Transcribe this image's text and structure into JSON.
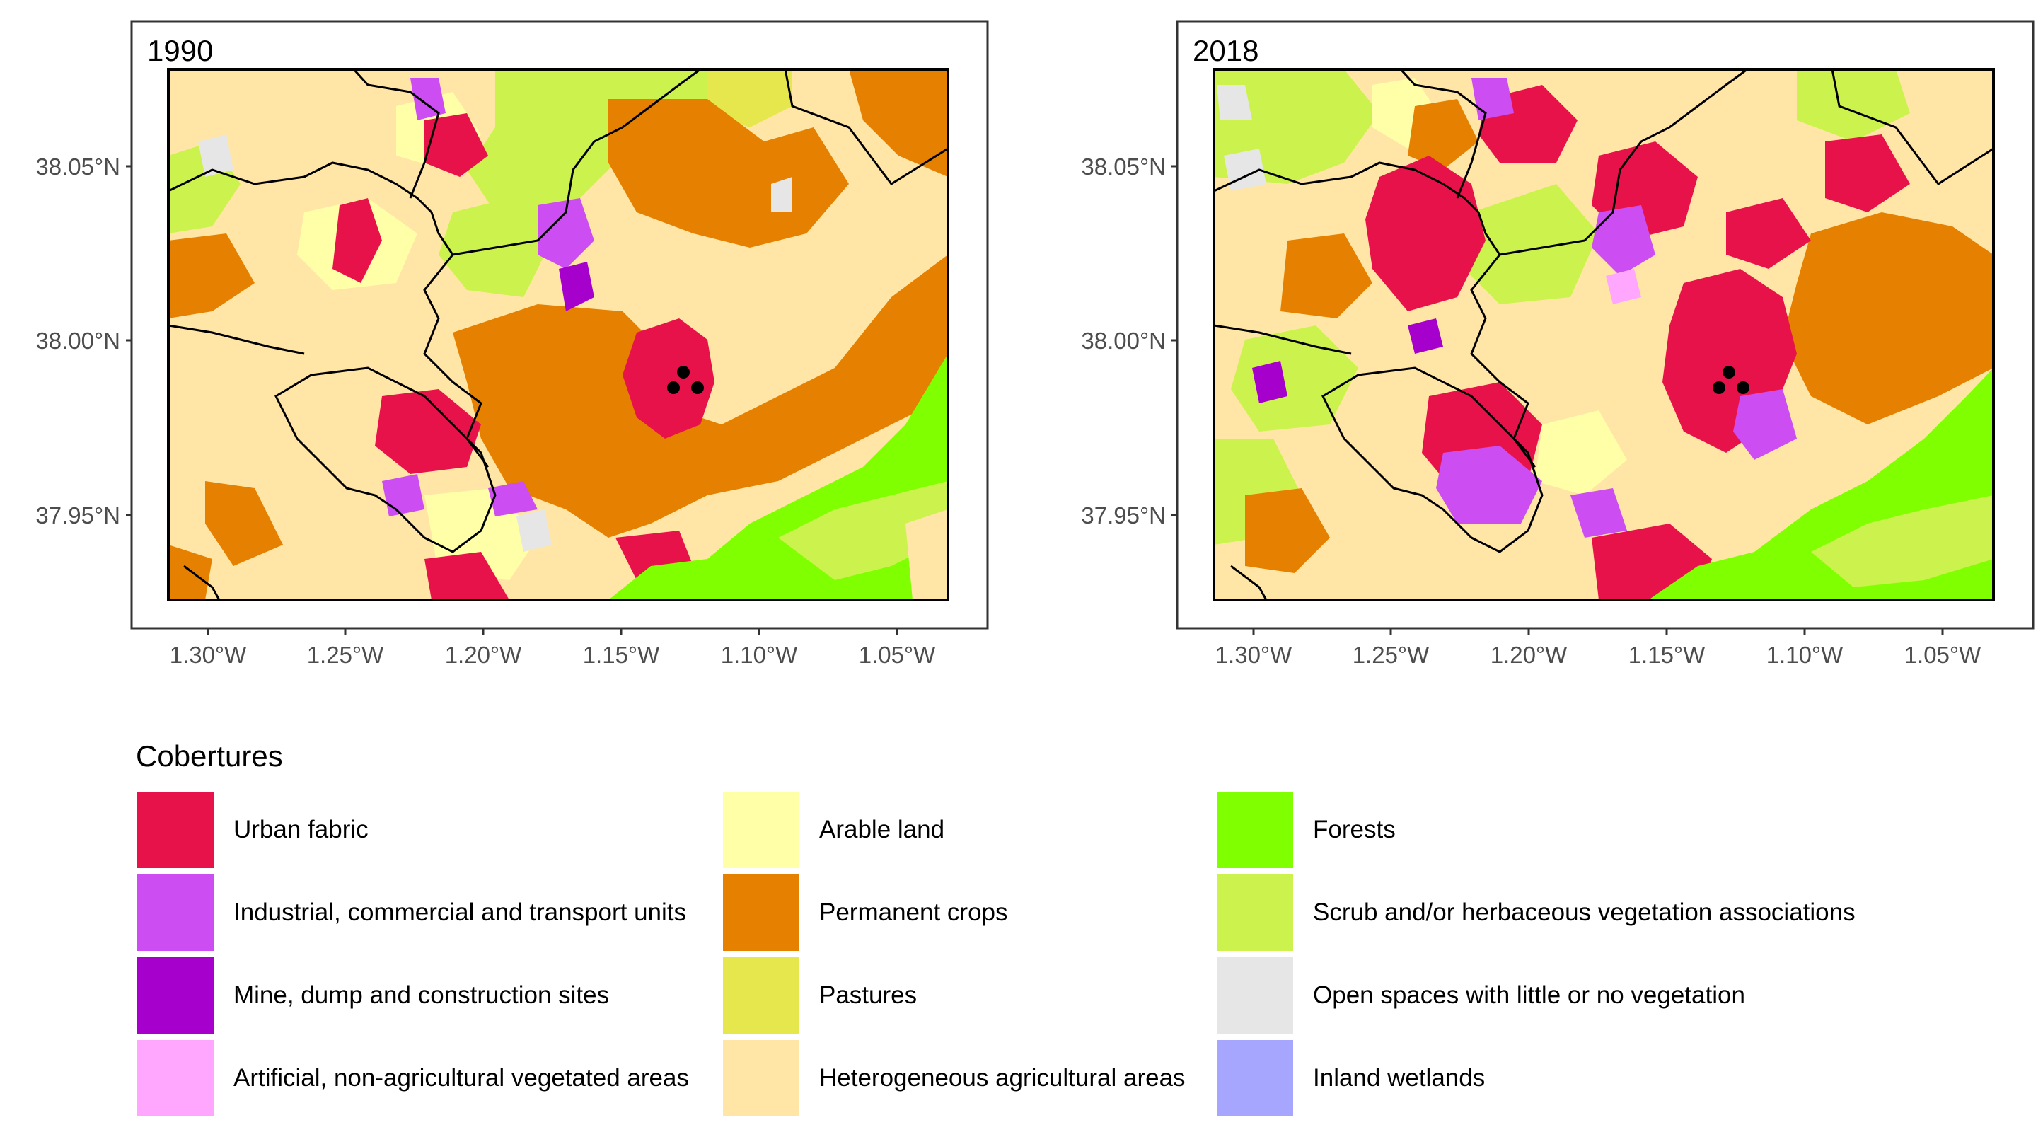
{
  "panels": [
    {
      "label": "1990"
    },
    {
      "label": "2018"
    }
  ],
  "axes": {
    "y_ticks": [
      "38.05°N",
      "38.00°N",
      "37.95°N"
    ],
    "x_ticks": [
      "1.30°W",
      "1.25°W",
      "1.20°W",
      "1.15°W",
      "1.10°W",
      "1.05°W"
    ]
  },
  "legend": {
    "title": "Cobertures",
    "items": [
      {
        "label": "Urban fabric",
        "color": "#e8124b"
      },
      {
        "label": "Industrial, commercial and transport units",
        "color": "#cc4df2"
      },
      {
        "label": "Mine, dump and construction sites",
        "color": "#a600cc"
      },
      {
        "label": "Artificial, non-agricultural vegetated areas",
        "color": "#ffa6ff"
      },
      {
        "label": "Arable land",
        "color": "#ffffa8"
      },
      {
        "label": "Permanent crops",
        "color": "#e68000"
      },
      {
        "label": "Pastures",
        "color": "#e6e64d"
      },
      {
        "label": "Heterogeneous agricultural areas",
        "color": "#ffe6a6"
      },
      {
        "label": "Forests",
        "color": "#80ff00"
      },
      {
        "label": "Scrub and/or herbaceous vegetation associations",
        "color": "#ccf24d"
      },
      {
        "label": "Open spaces with little or no vegetation",
        "color": "#e6e6e6"
      },
      {
        "label": "Inland wetlands",
        "color": "#a6a6ff"
      }
    ]
  }
}
